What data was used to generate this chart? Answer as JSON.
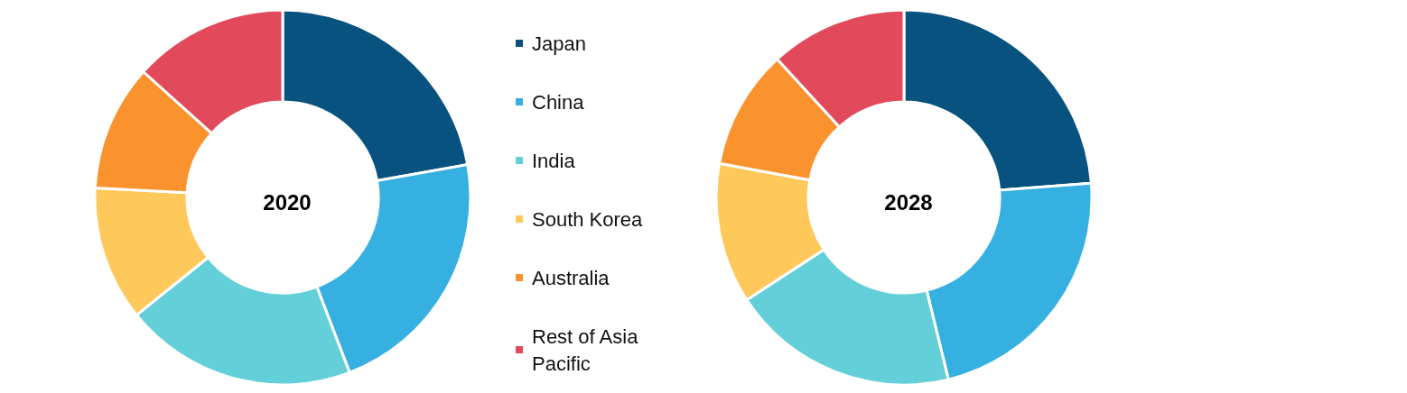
{
  "chart_data": {
    "type": "donut",
    "categories": [
      "Japan",
      "China",
      "India",
      "South Korea",
      "Australia",
      "Rest of Asia Pacific"
    ],
    "colors": [
      "#08527f",
      "#35b0e0",
      "#63cfd8",
      "#fec85a",
      "#fa922d",
      "#e2495a"
    ],
    "series": [
      {
        "name": "2020",
        "values": [
          22.2,
          22.0,
          20.0,
          11.6,
          10.9,
          13.3
        ]
      },
      {
        "name": "2028",
        "values": [
          23.8,
          22.4,
          19.6,
          12.1,
          10.3,
          11.8
        ]
      }
    ],
    "legend": "right"
  }
}
